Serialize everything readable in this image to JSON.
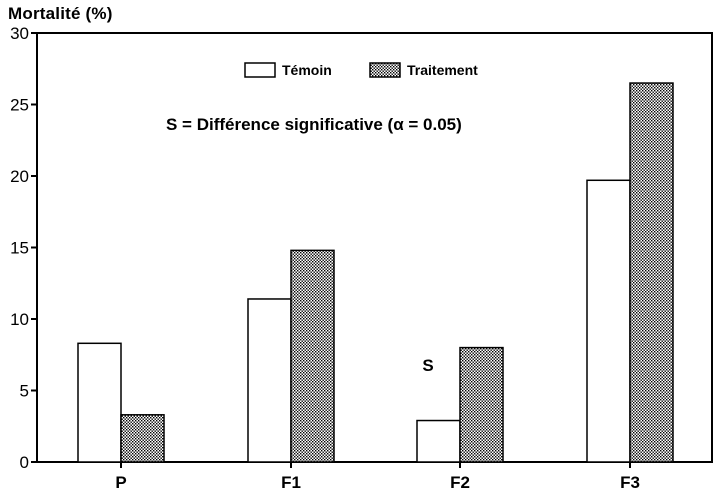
{
  "chart_data": {
    "type": "bar",
    "ylabel": "Mortalité (%)",
    "ylim": [
      0,
      30
    ],
    "yticks": [
      0,
      5,
      10,
      15,
      20,
      25,
      30
    ],
    "categories": [
      "P",
      "F1",
      "F2",
      "F3"
    ],
    "series": [
      {
        "name": "Témoin",
        "values": [
          8.3,
          11.4,
          2.9,
          19.7
        ],
        "fill": "white"
      },
      {
        "name": "Traitement",
        "values": [
          3.3,
          14.8,
          8.0,
          26.5
        ],
        "fill": "dotted"
      }
    ],
    "legend_position": "top-center",
    "note": "S = Différence significative (α = 0.05)",
    "annotations": [
      {
        "category": "F2",
        "text": "S"
      }
    ],
    "colors": {
      "axis": "#000000",
      "bar_outline": "#000000",
      "dot_fill": "#000000"
    }
  }
}
